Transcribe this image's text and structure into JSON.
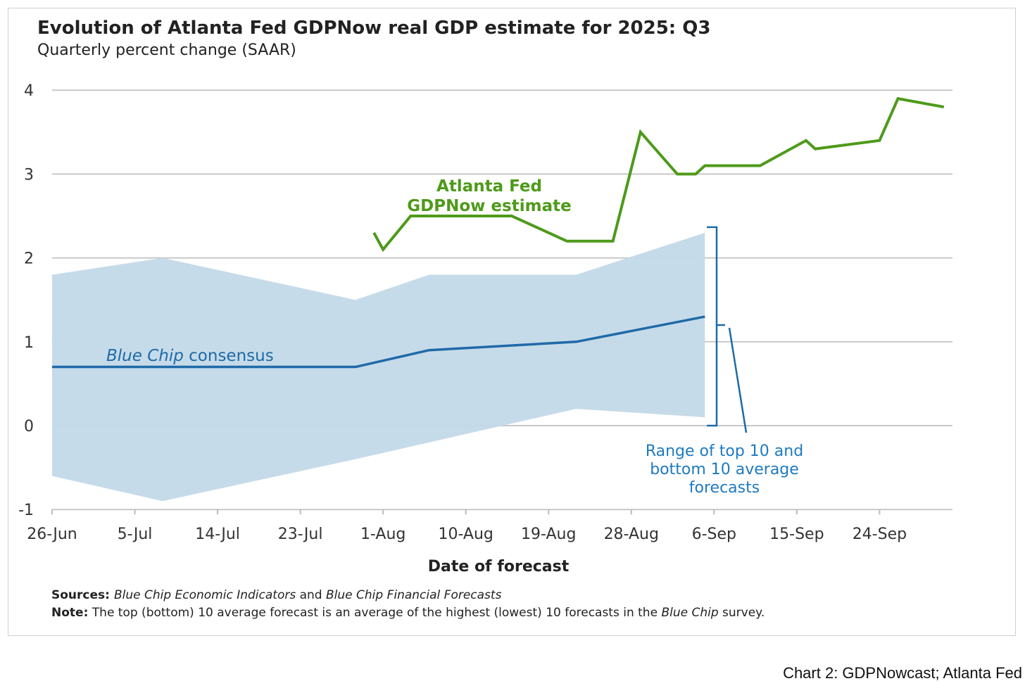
{
  "chart_data": {
    "type": "line",
    "title": "Evolution of Atlanta Fed GDPNow real GDP estimate for 2025: Q3",
    "subtitle": "Quarterly percent change (SAAR)",
    "xlabel": "Date of forecast",
    "ylabel": "",
    "x_units": "days since 26-Jun-2025",
    "xlim": [
      0,
      98
    ],
    "ylim": [
      -1,
      4
    ],
    "yticks": [
      4,
      3,
      2,
      1,
      0,
      -1
    ],
    "ytick_labels": [
      "4",
      "3",
      "2",
      "1",
      "0",
      "-1"
    ],
    "xticks": [
      0,
      9,
      18,
      27,
      36,
      45,
      54,
      63,
      72,
      81,
      90
    ],
    "xtick_labels": [
      "26-Jun",
      "5-Jul",
      "14-Jul",
      "23-Jul",
      "1-Aug",
      "10-Aug",
      "19-Aug",
      "28-Aug",
      "6-Sep",
      "15-Sep",
      "24-Sep"
    ],
    "grid": true,
    "series": [
      {
        "name": "Atlanta Fed GDPNow estimate",
        "color": "#4e9a1a",
        "x": [
          35,
          36,
          39,
          50,
          56,
          61,
          64,
          68,
          70,
          71,
          77,
          82,
          83,
          90,
          92,
          97
        ],
        "y": [
          2.3,
          2.1,
          2.5,
          2.5,
          2.2,
          2.2,
          3.5,
          3.0,
          3.0,
          3.1,
          3.1,
          3.4,
          3.3,
          3.4,
          3.9,
          3.8
        ]
      },
      {
        "name": "Blue Chip consensus",
        "color": "#1f6aa8",
        "x": [
          0,
          33,
          41,
          57,
          71
        ],
        "y": [
          0.7,
          0.7,
          0.9,
          1.0,
          1.3
        ]
      }
    ],
    "band": {
      "name": "Range of top 10 and bottom 10 average forecasts",
      "color": "#c3d9e8",
      "x_upper": [
        0,
        12,
        33,
        41,
        57,
        71
      ],
      "upper": [
        1.8,
        2.0,
        1.5,
        1.8,
        1.8,
        2.3
      ],
      "x_lower": [
        0,
        12,
        33,
        57,
        71
      ],
      "lower": [
        -0.6,
        -0.9,
        -0.4,
        0.2,
        0.1
      ]
    },
    "annotations": {
      "gdpnow_line1": "Atlanta Fed",
      "gdpnow_line2": "GDPNow estimate",
      "consensus_italic": "Blue Chip",
      "consensus_rest": " consensus",
      "range_line1": "Range of top 10 and",
      "range_line2": "bottom 10 average",
      "range_line3": "forecasts"
    },
    "sources": {
      "label": "Sources:",
      "part1": "Blue Chip Economic Indicators",
      "part2": " and ",
      "part3": "Blue Chip Financial Forecasts"
    },
    "note": {
      "label": "Note:",
      "part1": " The top (bottom) 10 average forecast is an average of the highest (lowest) 10 forecasts in the ",
      "part2": "Blue Chip",
      "part3": " survey."
    }
  },
  "caption": "Chart 2: GDPNowcast; Atlanta Fed"
}
